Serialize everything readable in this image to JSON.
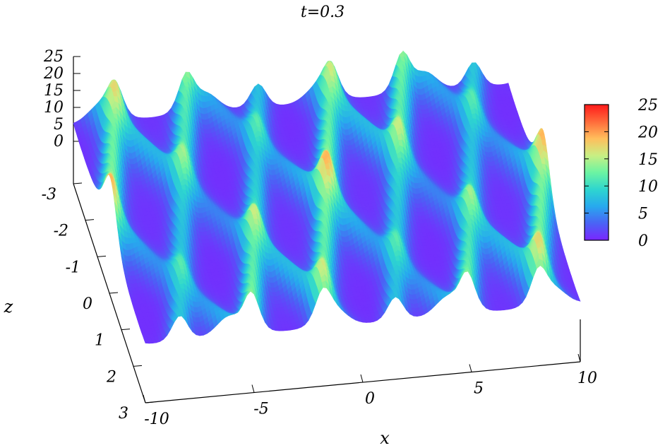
{
  "chart_data": {
    "type": "surface",
    "title": "t=0.3",
    "xlabel": "x",
    "ylabel": "z",
    "x_ticks": [
      "-10",
      "-5",
      "0",
      "5",
      "10"
    ],
    "z_ticks": [
      "-3",
      "-2",
      "-1",
      "0",
      "1",
      "2",
      "3"
    ],
    "vertical_ticks": [
      "0",
      "5",
      "10",
      "15",
      "20",
      "25"
    ],
    "xlim": [
      -10,
      10
    ],
    "zlim": [
      -3,
      3
    ],
    "vlim": [
      0,
      25
    ],
    "colorbar": {
      "ticks": [
        "0",
        "5",
        "10",
        "15",
        "20",
        "25"
      ],
      "range": [
        0,
        25
      ],
      "colors": [
        "#7a26ff",
        "#4a63f5",
        "#27a9ee",
        "#2ed6cf",
        "#6cf4a2",
        "#c9ef83",
        "#ffbe5c",
        "#ff6a3a",
        "#ff1a1a"
      ]
    },
    "grid": false,
    "legend": "colorbar-right"
  }
}
